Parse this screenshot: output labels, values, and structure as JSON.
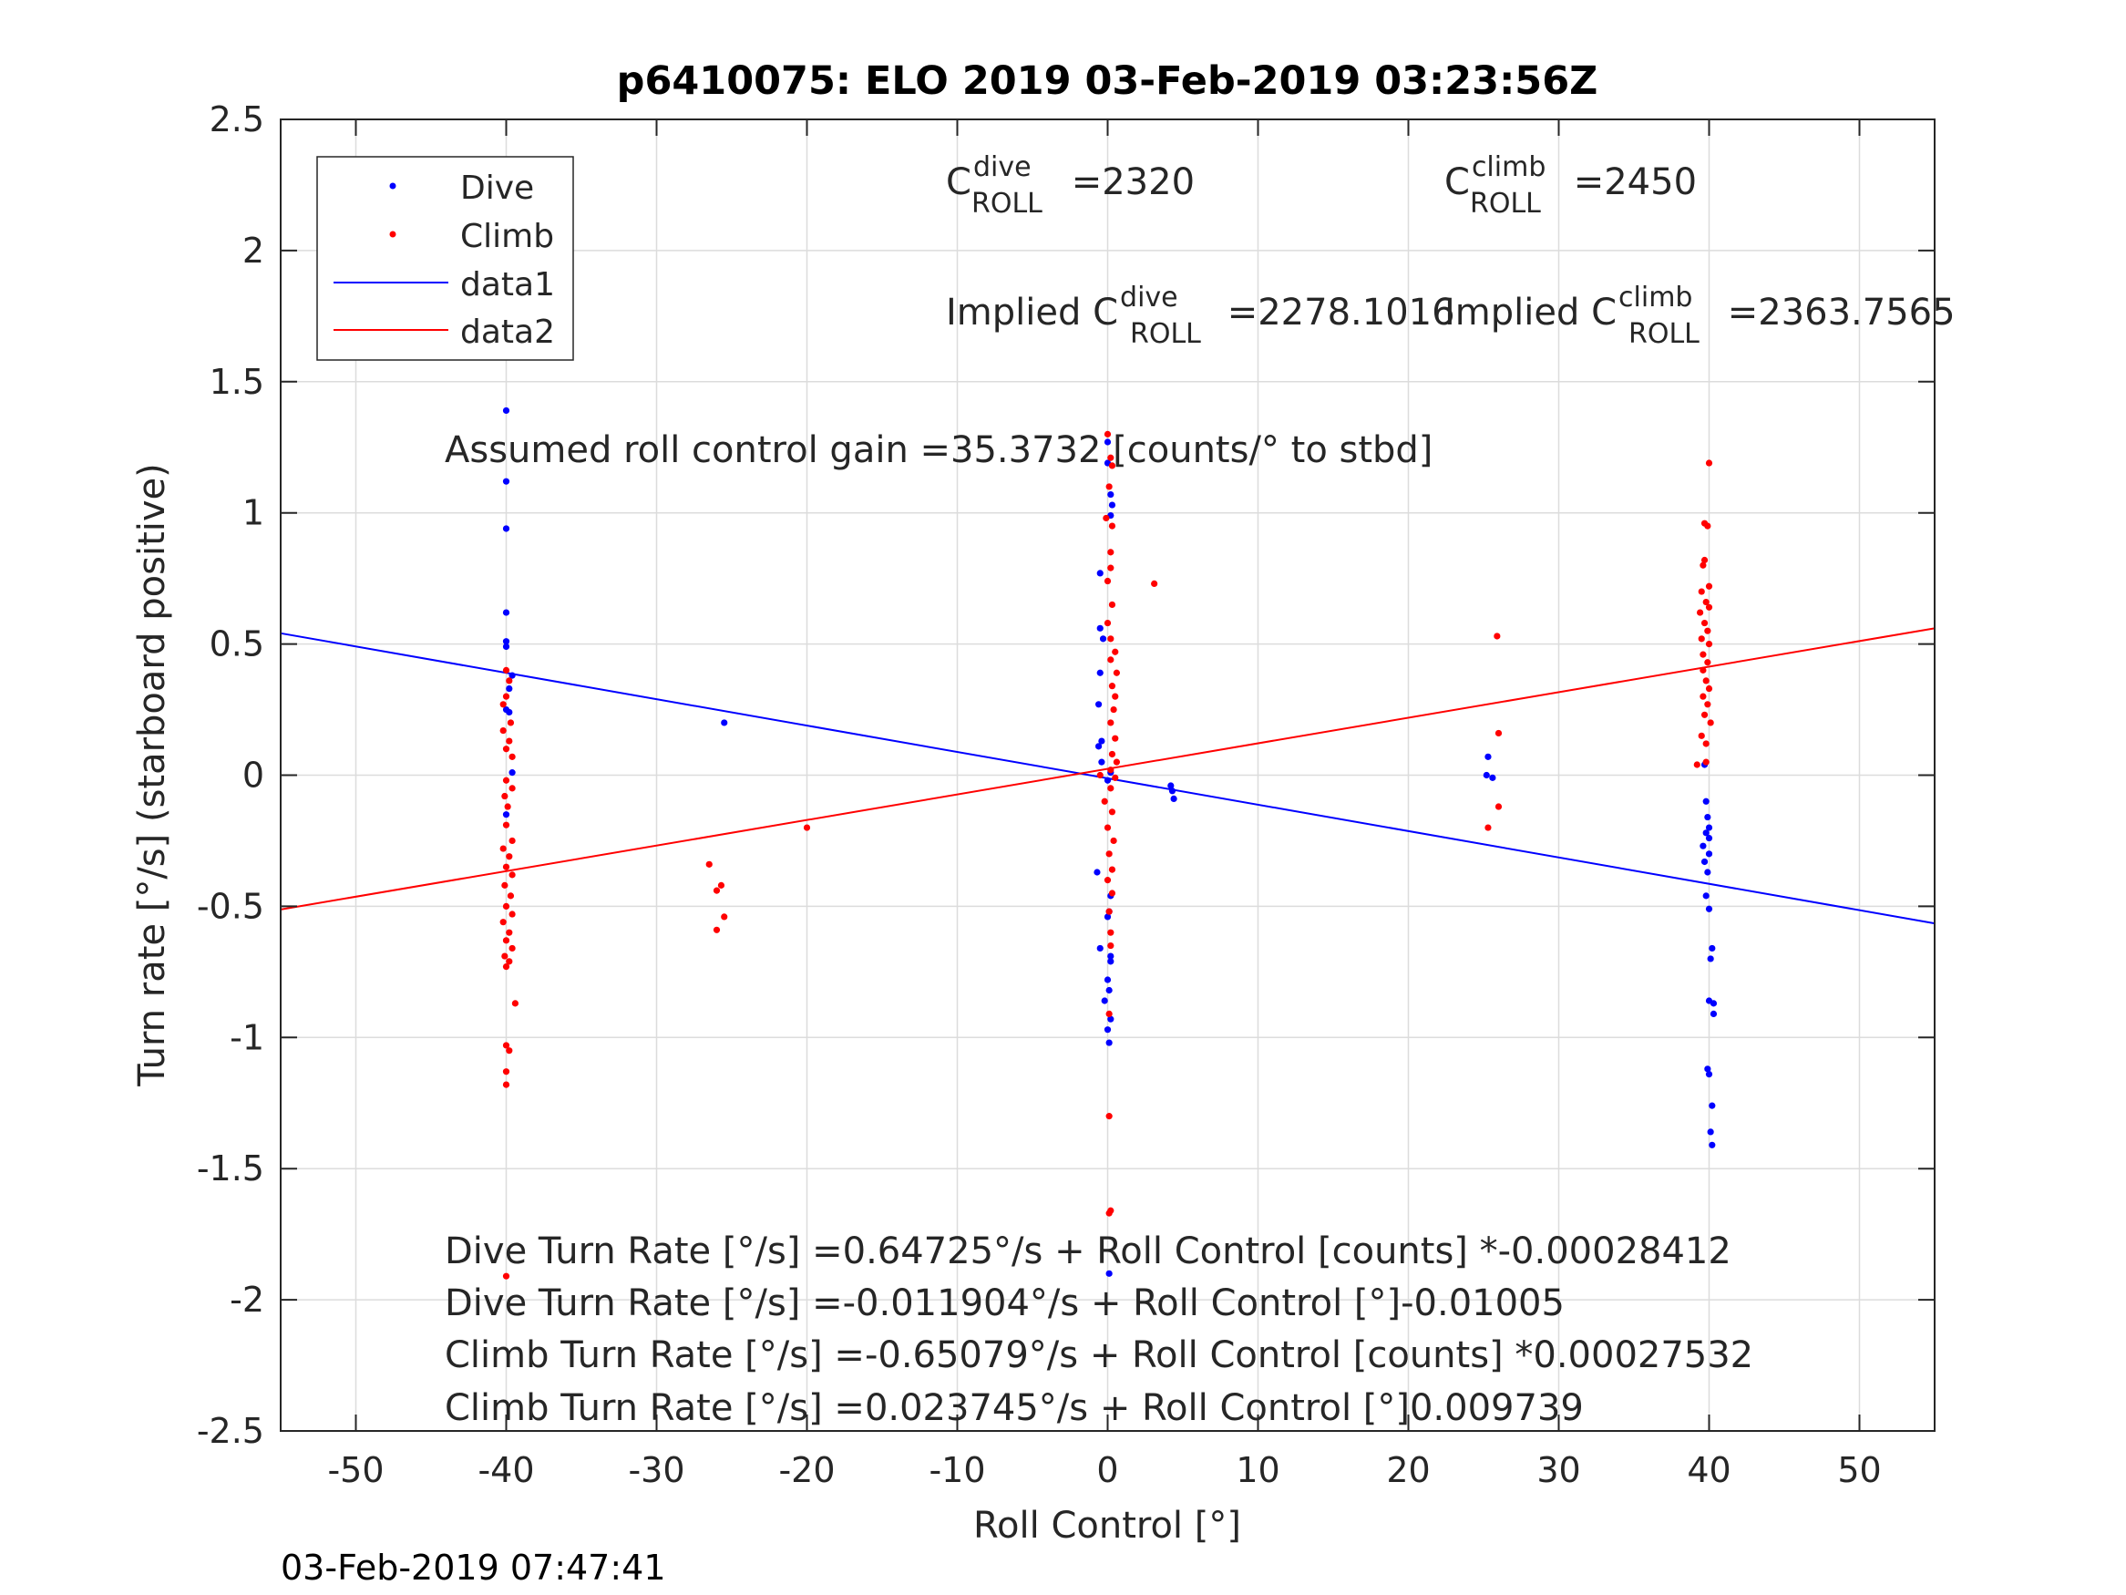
{
  "chart_data": {
    "type": "scatter",
    "title": "p6410075: ELO 2019 03-Feb-2019 03:23:56Z",
    "xlabel": "Roll Control [°]",
    "ylabel": "Turn rate [°/s] (starboard positive)",
    "xlim": [
      -55,
      55
    ],
    "ylim": [
      -2.5,
      2.5
    ],
    "x_ticks": [
      -50,
      -40,
      -30,
      -20,
      -10,
      0,
      10,
      20,
      30,
      40,
      50
    ],
    "y_ticks": [
      -2.5,
      -2,
      -1.5,
      -1,
      -0.5,
      0,
      0.5,
      1,
      1.5,
      2,
      2.5
    ],
    "x_tick_labels": [
      "-50",
      "-40",
      "-30",
      "-20",
      "-10",
      "0",
      "10",
      "20",
      "30",
      "40",
      "50"
    ],
    "y_tick_labels": [
      "-2.5",
      "-2",
      "-1.5",
      "-1",
      "-0.5",
      "0",
      "0.5",
      "1",
      "1.5",
      "2",
      "2.5"
    ],
    "grid": true,
    "legend_position": "top-left",
    "legend": [
      {
        "label": "Dive",
        "kind": "marker",
        "color": "#0000ff"
      },
      {
        "label": "Climb",
        "kind": "marker",
        "color": "#ff0000"
      },
      {
        "label": "data1",
        "kind": "line",
        "color": "#0000ff"
      },
      {
        "label": "data2",
        "kind": "line",
        "color": "#ff0000"
      }
    ],
    "series": [
      {
        "name": "Dive",
        "color": "#0000ff",
        "points": [
          [
            -40,
            1.39
          ],
          [
            -40,
            1.12
          ],
          [
            -40,
            0.94
          ],
          [
            -40,
            0.62
          ],
          [
            -40,
            0.51
          ],
          [
            -40,
            0.49
          ],
          [
            -39.6,
            0.38
          ],
          [
            -39.8,
            0.33
          ],
          [
            -40,
            0.25
          ],
          [
            -39.8,
            0.24
          ],
          [
            -39.6,
            0.01
          ],
          [
            -40,
            -0.15
          ],
          [
            -25.5,
            0.2
          ],
          [
            0,
            1.27
          ],
          [
            0,
            1.19
          ],
          [
            0.2,
            1.07
          ],
          [
            0.3,
            1.03
          ],
          [
            0.2,
            0.99
          ],
          [
            -0.5,
            0.77
          ],
          [
            -0.5,
            0.56
          ],
          [
            -0.3,
            0.52
          ],
          [
            -0.5,
            0.39
          ],
          [
            -0.6,
            0.27
          ],
          [
            -0.4,
            0.13
          ],
          [
            -0.6,
            0.11
          ],
          [
            -0.4,
            0.05
          ],
          [
            0,
            -0.02
          ],
          [
            0.2,
            0.01
          ],
          [
            -0.7,
            -0.37
          ],
          [
            0.2,
            -0.46
          ],
          [
            0.1,
            -0.52
          ],
          [
            0,
            -0.54
          ],
          [
            -0.5,
            -0.66
          ],
          [
            0.2,
            -0.69
          ],
          [
            0.2,
            -0.71
          ],
          [
            0,
            -0.78
          ],
          [
            0.1,
            -0.82
          ],
          [
            -0.2,
            -0.86
          ],
          [
            0.2,
            -0.93
          ],
          [
            0,
            -0.97
          ],
          [
            0.1,
            -1.02
          ],
          [
            0.1,
            -1.9
          ],
          [
            4.2,
            -0.04
          ],
          [
            4.3,
            -0.06
          ],
          [
            4.4,
            -0.09
          ],
          [
            25.3,
            0.07
          ],
          [
            25.2,
            0.0
          ],
          [
            25.6,
            -0.01
          ],
          [
            39.7,
            0.04
          ],
          [
            39.8,
            -0.1
          ],
          [
            39.9,
            -0.16
          ],
          [
            40,
            -0.2
          ],
          [
            39.8,
            -0.22
          ],
          [
            40,
            -0.24
          ],
          [
            39.6,
            -0.27
          ],
          [
            40,
            -0.3
          ],
          [
            39.7,
            -0.33
          ],
          [
            39.9,
            -0.37
          ],
          [
            39.8,
            -0.46
          ],
          [
            40,
            -0.51
          ],
          [
            40.2,
            -0.66
          ],
          [
            40.1,
            -0.7
          ],
          [
            40,
            -0.86
          ],
          [
            40.3,
            -0.87
          ],
          [
            40.3,
            -0.91
          ],
          [
            39.9,
            -1.12
          ],
          [
            40,
            -1.14
          ],
          [
            40.2,
            -1.26
          ],
          [
            40.1,
            -1.36
          ],
          [
            40.2,
            -1.41
          ]
        ]
      },
      {
        "name": "Climb",
        "color": "#ff0000",
        "points": [
          [
            -40,
            0.4
          ],
          [
            -39.8,
            0.36
          ],
          [
            -40,
            0.3
          ],
          [
            -40.2,
            0.27
          ],
          [
            -39.7,
            0.2
          ],
          [
            -40.2,
            0.17
          ],
          [
            -39.8,
            0.13
          ],
          [
            -40,
            0.1
          ],
          [
            -39.6,
            0.07
          ],
          [
            -40,
            -0.02
          ],
          [
            -39.6,
            -0.05
          ],
          [
            -40.1,
            -0.08
          ],
          [
            -39.9,
            -0.12
          ],
          [
            -40,
            -0.19
          ],
          [
            -39.6,
            -0.25
          ],
          [
            -40.2,
            -0.28
          ],
          [
            -39.8,
            -0.31
          ],
          [
            -40,
            -0.35
          ],
          [
            -39.6,
            -0.38
          ],
          [
            -40.1,
            -0.42
          ],
          [
            -39.7,
            -0.46
          ],
          [
            -40,
            -0.5
          ],
          [
            -39.6,
            -0.53
          ],
          [
            -40.2,
            -0.56
          ],
          [
            -39.8,
            -0.6
          ],
          [
            -40,
            -0.63
          ],
          [
            -39.6,
            -0.66
          ],
          [
            -40.1,
            -0.69
          ],
          [
            -39.8,
            -0.71
          ],
          [
            -40,
            -0.73
          ],
          [
            -39.4,
            -0.87
          ],
          [
            -40,
            -1.03
          ],
          [
            -39.8,
            -1.05
          ],
          [
            -40,
            -1.13
          ],
          [
            -40,
            -1.18
          ],
          [
            -40,
            -1.91
          ],
          [
            -26.5,
            -0.34
          ],
          [
            -26,
            -0.44
          ],
          [
            -25.7,
            -0.42
          ],
          [
            -25.5,
            -0.54
          ],
          [
            -26,
            -0.59
          ],
          [
            -20,
            -0.2
          ],
          [
            0,
            1.3
          ],
          [
            0.2,
            1.21
          ],
          [
            0.3,
            1.18
          ],
          [
            0.1,
            1.1
          ],
          [
            -0.1,
            0.98
          ],
          [
            0.3,
            0.95
          ],
          [
            0.2,
            0.85
          ],
          [
            0.2,
            0.79
          ],
          [
            0,
            0.74
          ],
          [
            0.3,
            0.65
          ],
          [
            0,
            0.58
          ],
          [
            0.2,
            0.52
          ],
          [
            0.5,
            0.47
          ],
          [
            0.2,
            0.44
          ],
          [
            0.6,
            0.39
          ],
          [
            0.3,
            0.34
          ],
          [
            0.5,
            0.3
          ],
          [
            0.4,
            0.25
          ],
          [
            0.2,
            0.2
          ],
          [
            0.5,
            0.14
          ],
          [
            0.3,
            0.08
          ],
          [
            0.6,
            0.05
          ],
          [
            0.2,
            0.02
          ],
          [
            -0.5,
            0.0
          ],
          [
            0.5,
            -0.01
          ],
          [
            0.2,
            -0.05
          ],
          [
            -0.2,
            -0.1
          ],
          [
            0.3,
            -0.14
          ],
          [
            0,
            -0.2
          ],
          [
            0.4,
            -0.25
          ],
          [
            0.1,
            -0.3
          ],
          [
            0.3,
            -0.36
          ],
          [
            0,
            -0.4
          ],
          [
            0.3,
            -0.45
          ],
          [
            0.1,
            -0.52
          ],
          [
            0.2,
            -0.6
          ],
          [
            0.2,
            -0.65
          ],
          [
            0.1,
            -0.91
          ],
          [
            0.1,
            -1.3
          ],
          [
            0.2,
            -1.66
          ],
          [
            0.1,
            -1.67
          ],
          [
            3.1,
            0.73
          ],
          [
            25.9,
            0.53
          ],
          [
            26,
            0.16
          ],
          [
            26,
            -0.12
          ],
          [
            25.3,
            -0.2
          ],
          [
            40,
            1.19
          ],
          [
            39.7,
            0.96
          ],
          [
            39.9,
            0.95
          ],
          [
            39.7,
            0.82
          ],
          [
            39.6,
            0.8
          ],
          [
            40,
            0.72
          ],
          [
            39.5,
            0.7
          ],
          [
            39.8,
            0.66
          ],
          [
            40,
            0.64
          ],
          [
            39.4,
            0.62
          ],
          [
            39.7,
            0.58
          ],
          [
            39.9,
            0.55
          ],
          [
            39.5,
            0.52
          ],
          [
            40,
            0.5
          ],
          [
            39.6,
            0.46
          ],
          [
            39.9,
            0.43
          ],
          [
            39.6,
            0.4
          ],
          [
            39.8,
            0.36
          ],
          [
            40,
            0.33
          ],
          [
            39.6,
            0.3
          ],
          [
            39.9,
            0.27
          ],
          [
            39.7,
            0.23
          ],
          [
            40.1,
            0.2
          ],
          [
            39.5,
            0.15
          ],
          [
            39.8,
            0.12
          ],
          [
            39.2,
            0.04
          ],
          [
            39.8,
            0.05
          ]
        ]
      },
      {
        "name": "data1",
        "kind": "line",
        "color": "#0000ff",
        "x": [
          -55,
          55
        ],
        "y": [
          0.541,
          -0.565
        ]
      },
      {
        "name": "data2",
        "kind": "line",
        "color": "#ff0000",
        "x": [
          -55,
          55
        ],
        "y": [
          -0.512,
          0.56
        ]
      }
    ],
    "annotations": {
      "c_dive": {
        "prefix": "C",
        "sup": "dive",
        "sub": "ROLL",
        "value": " =2320"
      },
      "c_climb": {
        "prefix": "C",
        "sup": "climb",
        "sub": "ROLL",
        "value": " =2450"
      },
      "implied_dive": {
        "prefix": "Implied C",
        "sup": "dive",
        "sub": "ROLL",
        "value": " =2278.1016"
      },
      "implied_climb": {
        "prefix": "Implied C",
        "sup": "climb",
        "sub": "ROLL",
        "value": " =2363.7565"
      },
      "gain": "Assumed roll control gain =35.3732 [counts/° to stbd]",
      "equations": [
        "Dive Turn Rate [°/s] =0.64725°/s + Roll Control [counts] *-0.00028412",
        "Dive Turn Rate [°/s] =-0.011904°/s + Roll Control [°]-0.01005",
        "Climb Turn Rate [°/s] =-0.65079°/s + Roll Control [counts] *0.00027532",
        "Climb Turn Rate [°/s] =0.023745°/s + Roll Control [°]0.009739"
      ]
    }
  },
  "footer_timestamp": "03-Feb-2019 07:47:41"
}
